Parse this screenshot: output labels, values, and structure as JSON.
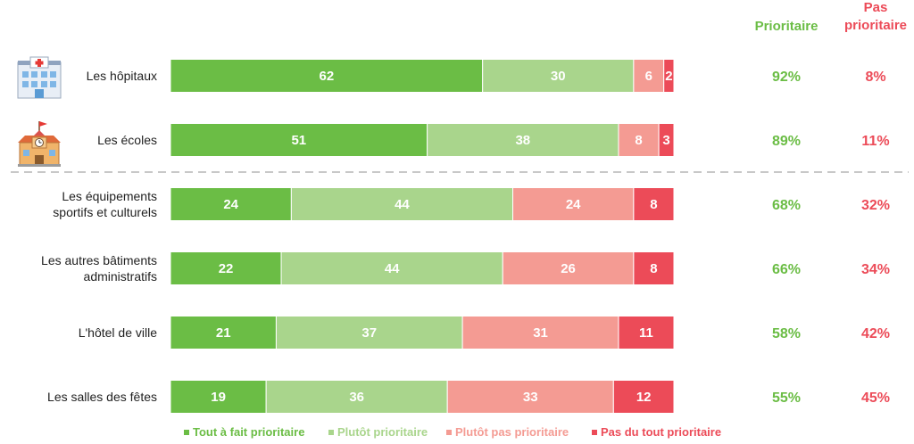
{
  "chart_data": {
    "type": "bar",
    "orientation": "horizontal",
    "stacked": true,
    "categories": [
      [
        "Les hôpitaux"
      ],
      [
        "Les écoles"
      ],
      [
        "Les équipements",
        "sportifs et culturels"
      ],
      [
        "Les autres bâtiments",
        "administratifs"
      ],
      [
        "L'hôtel de ville"
      ],
      [
        "Les salles des fêtes"
      ]
    ],
    "series": [
      {
        "name": "Tout à fait prioritaire",
        "color": "#6bbd45",
        "values": [
          62,
          51,
          24,
          22,
          21,
          19
        ]
      },
      {
        "name": "Plutôt prioritaire",
        "color": "#a9d58c",
        "values": [
          30,
          38,
          44,
          44,
          37,
          36
        ]
      },
      {
        "name": "Plutôt pas prioritaire",
        "color": "#f49b93",
        "values": [
          6,
          8,
          24,
          26,
          31,
          33
        ]
      },
      {
        "name": "Pas du tout prioritaire",
        "color": "#ec4b58",
        "values": [
          2,
          3,
          8,
          8,
          11,
          12
        ]
      }
    ],
    "summary": {
      "headers": [
        {
          "label": [
            "Prioritaire"
          ],
          "color": "#6bbd45"
        },
        {
          "label": [
            "Pas",
            "prioritaire"
          ],
          "color": "#ec4b58"
        }
      ],
      "prioritaire": [
        "92%",
        "89%",
        "68%",
        "66%",
        "58%",
        "55%"
      ],
      "pas_prioritaire": [
        "8%",
        "11%",
        "32%",
        "34%",
        "42%",
        "45%"
      ]
    },
    "icons": [
      "hospital-icon",
      "school-icon"
    ],
    "separator_after_row": 1,
    "legend_position": "bottom",
    "grid": false
  }
}
